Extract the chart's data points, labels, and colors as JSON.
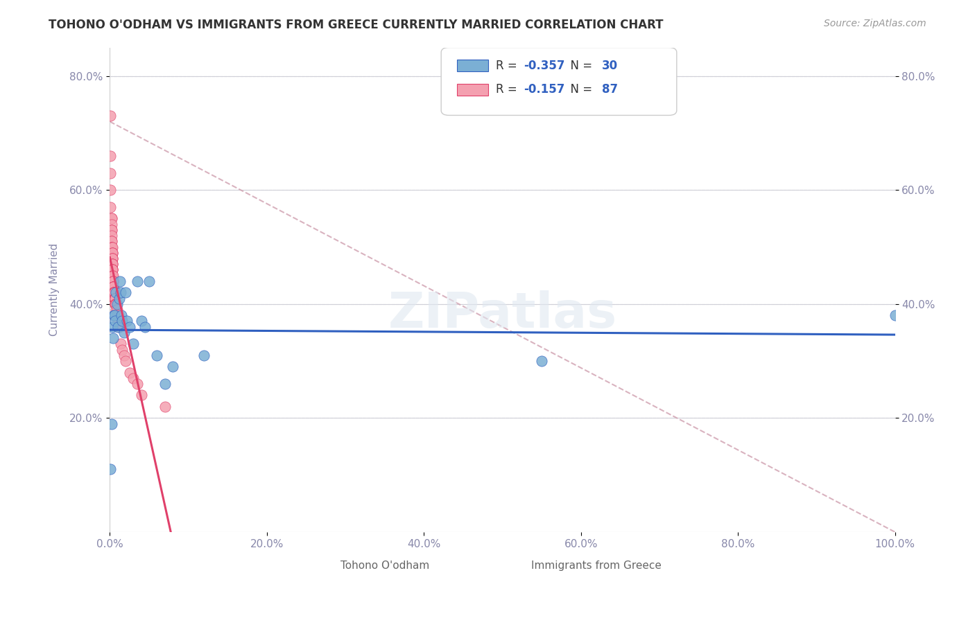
{
  "title": "TOHONO O'ODHAM VS IMMIGRANTS FROM GREECE CURRENTLY MARRIED CORRELATION CHART",
  "source": "Source: ZipAtlas.com",
  "ylabel": "Currently Married",
  "xlabel": "",
  "watermark": "ZIPatlas",
  "legend_blue_R": -0.357,
  "legend_blue_N": 30,
  "legend_pink_R": -0.157,
  "legend_pink_N": 87,
  "legend_blue_label": "Tohono O'odham",
  "legend_pink_label": "Immigrants from Greece",
  "blue_scatter_x": [
    0.001,
    0.002,
    0.003,
    0.004,
    0.005,
    0.006,
    0.007,
    0.008,
    0.009,
    0.01,
    0.012,
    0.013,
    0.014,
    0.015,
    0.016,
    0.018,
    0.02,
    0.022,
    0.025,
    0.03,
    0.035,
    0.04,
    0.045,
    0.05,
    0.06,
    0.07,
    0.08,
    0.12,
    0.55,
    1.0
  ],
  "blue_scatter_y": [
    0.11,
    0.19,
    0.36,
    0.34,
    0.38,
    0.38,
    0.37,
    0.42,
    0.4,
    0.36,
    0.41,
    0.44,
    0.42,
    0.38,
    0.37,
    0.35,
    0.42,
    0.37,
    0.36,
    0.33,
    0.44,
    0.37,
    0.36,
    0.44,
    0.31,
    0.26,
    0.29,
    0.31,
    0.3,
    0.38
  ],
  "pink_scatter_x": [
    0.001,
    0.001,
    0.001,
    0.001,
    0.001,
    0.002,
    0.002,
    0.002,
    0.002,
    0.002,
    0.002,
    0.002,
    0.002,
    0.002,
    0.002,
    0.002,
    0.003,
    0.003,
    0.003,
    0.003,
    0.003,
    0.003,
    0.003,
    0.003,
    0.003,
    0.003,
    0.003,
    0.003,
    0.003,
    0.003,
    0.003,
    0.003,
    0.003,
    0.004,
    0.004,
    0.004,
    0.004,
    0.004,
    0.004,
    0.004,
    0.004,
    0.004,
    0.004,
    0.004,
    0.004,
    0.005,
    0.005,
    0.005,
    0.005,
    0.005,
    0.005,
    0.005,
    0.005,
    0.005,
    0.005,
    0.005,
    0.005,
    0.005,
    0.006,
    0.006,
    0.006,
    0.006,
    0.006,
    0.006,
    0.006,
    0.006,
    0.007,
    0.007,
    0.007,
    0.007,
    0.007,
    0.008,
    0.008,
    0.008,
    0.009,
    0.009,
    0.01,
    0.012,
    0.014,
    0.016,
    0.018,
    0.02,
    0.025,
    0.03,
    0.035,
    0.04,
    0.07
  ],
  "pink_scatter_y": [
    0.73,
    0.66,
    0.63,
    0.6,
    0.57,
    0.55,
    0.55,
    0.54,
    0.53,
    0.53,
    0.52,
    0.51,
    0.51,
    0.5,
    0.5,
    0.5,
    0.5,
    0.49,
    0.49,
    0.49,
    0.48,
    0.48,
    0.48,
    0.47,
    0.47,
    0.47,
    0.46,
    0.46,
    0.46,
    0.46,
    0.45,
    0.45,
    0.45,
    0.45,
    0.44,
    0.44,
    0.44,
    0.44,
    0.43,
    0.43,
    0.43,
    0.43,
    0.43,
    0.43,
    0.43,
    0.42,
    0.42,
    0.42,
    0.42,
    0.42,
    0.42,
    0.42,
    0.42,
    0.42,
    0.42,
    0.42,
    0.42,
    0.42,
    0.42,
    0.42,
    0.41,
    0.41,
    0.41,
    0.41,
    0.41,
    0.41,
    0.41,
    0.41,
    0.4,
    0.4,
    0.4,
    0.4,
    0.4,
    0.39,
    0.39,
    0.38,
    0.37,
    0.36,
    0.33,
    0.32,
    0.31,
    0.3,
    0.28,
    0.27,
    0.26,
    0.24,
    0.22
  ],
  "blue_color": "#7bafd4",
  "pink_color": "#f4a0b0",
  "blue_line_color": "#3060c0",
  "pink_line_color": "#e0406a",
  "dashed_line_color": "#d0a0b0",
  "background_color": "#ffffff",
  "grid_color": "#d0d0d8",
  "axis_label_color": "#8888aa",
  "title_color": "#333333",
  "xlim": [
    0.0,
    1.0
  ],
  "ylim": [
    0.0,
    0.85
  ],
  "yticks": [
    0.2,
    0.4,
    0.6,
    0.8
  ],
  "ytick_labels": [
    "20.0%",
    "40.0%",
    "60.0%",
    "80.0%"
  ],
  "xticks": [
    0.0,
    0.2,
    0.4,
    0.6,
    0.8,
    1.0
  ],
  "xtick_labels": [
    "0.0%",
    "20.0%",
    "40.0%",
    "60.0%",
    "80.0%",
    "100.0%"
  ]
}
